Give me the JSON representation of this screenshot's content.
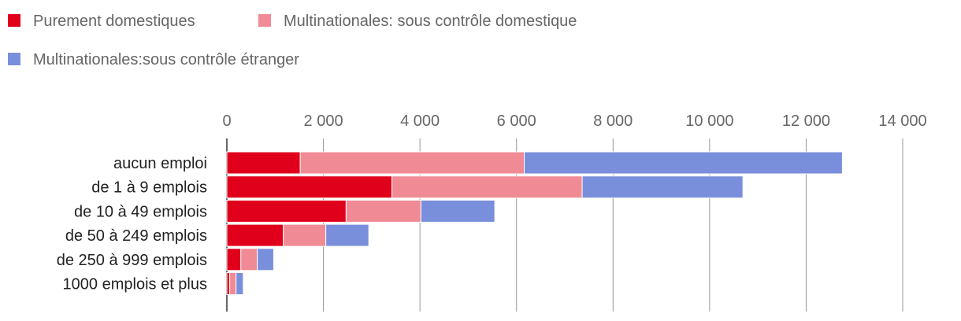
{
  "chart_data": {
    "type": "bar",
    "orientation": "horizontal",
    "stacked": true,
    "categories": [
      "aucun emploi",
      "de 1 à 9 emplois",
      "de 10 à 49 emplois",
      "de 50 à 249 emplois",
      "de 250 à 999 emplois",
      "1000 emplois et plus"
    ],
    "series": [
      {
        "name": "Purement domestiques",
        "color": "#e0001b",
        "values": [
          1520,
          3420,
          2470,
          1170,
          290,
          60
        ]
      },
      {
        "name": "Multinationales: sous contrôle domestique",
        "color": "#f08a94",
        "values": [
          4640,
          3940,
          1550,
          880,
          340,
          130
        ]
      },
      {
        "name": "Multinationales:sous contrôle étranger",
        "color": "#7a8fdb",
        "values": [
          6590,
          3330,
          1530,
          890,
          340,
          150
        ]
      }
    ],
    "xlim": [
      0,
      14000
    ],
    "xticks": [
      0,
      2000,
      4000,
      6000,
      8000,
      10000,
      12000,
      14000
    ],
    "xtick_labels": [
      "0",
      "2 000",
      "4 000",
      "6 000",
      "8 000",
      "10 000",
      "12 000",
      "14 000"
    ],
    "grid": true,
    "legend_position": "top-left"
  }
}
